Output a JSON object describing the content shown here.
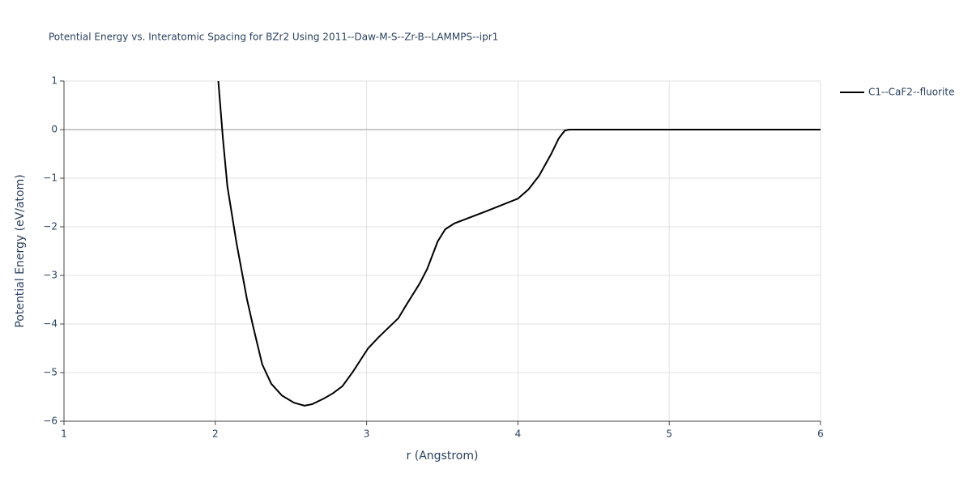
{
  "chart_data": {
    "type": "line",
    "title": "Potential Energy vs. Interatomic Spacing for BZr2 Using 2011--Daw-M-S--Zr-B--LAMMPS--ipr1",
    "x_label": "r (Angstrom)",
    "y_label": "Potential Energy (eV/atom)",
    "xlim": [
      1,
      6
    ],
    "ylim": [
      -6,
      1
    ],
    "xticks": [
      1,
      2,
      3,
      4,
      5,
      6
    ],
    "yticks": [
      {
        "value": -6,
        "label": "−6"
      },
      {
        "value": -5,
        "label": "−5"
      },
      {
        "value": -4,
        "label": "−4"
      },
      {
        "value": -3,
        "label": "−3"
      },
      {
        "value": -2,
        "label": "−2"
      },
      {
        "value": -1,
        "label": "−1"
      },
      0,
      1
    ],
    "grid": true,
    "legend": "right",
    "x": [
      2.02,
      2.05,
      2.08,
      2.14,
      2.21,
      2.25,
      2.31,
      2.37,
      2.44,
      2.52,
      2.59,
      2.64,
      2.72,
      2.78,
      2.84,
      2.91,
      3.01,
      3.08,
      3.21,
      3.26,
      3.35,
      3.4,
      3.47,
      3.52,
      3.58,
      3.79,
      4.0,
      4.07,
      4.14,
      4.22,
      4.27,
      4.31,
      4.34,
      6
    ],
    "series": [
      {
        "name": "C1--CaF2--fluorite",
        "color": "#000000",
        "values": [
          1,
          -0.17,
          -1.17,
          -2.33,
          -3.5,
          -4.05,
          -4.83,
          -5.23,
          -5.47,
          -5.62,
          -5.68,
          -5.65,
          -5.53,
          -5.42,
          -5.28,
          -4.98,
          -4.5,
          -4.27,
          -3.88,
          -3.62,
          -3.17,
          -2.87,
          -2.3,
          -2.05,
          -1.93,
          -1.68,
          -1.42,
          -1.23,
          -0.95,
          -0.5,
          -0.18,
          -0.02,
          0,
          0
        ]
      }
    ]
  }
}
